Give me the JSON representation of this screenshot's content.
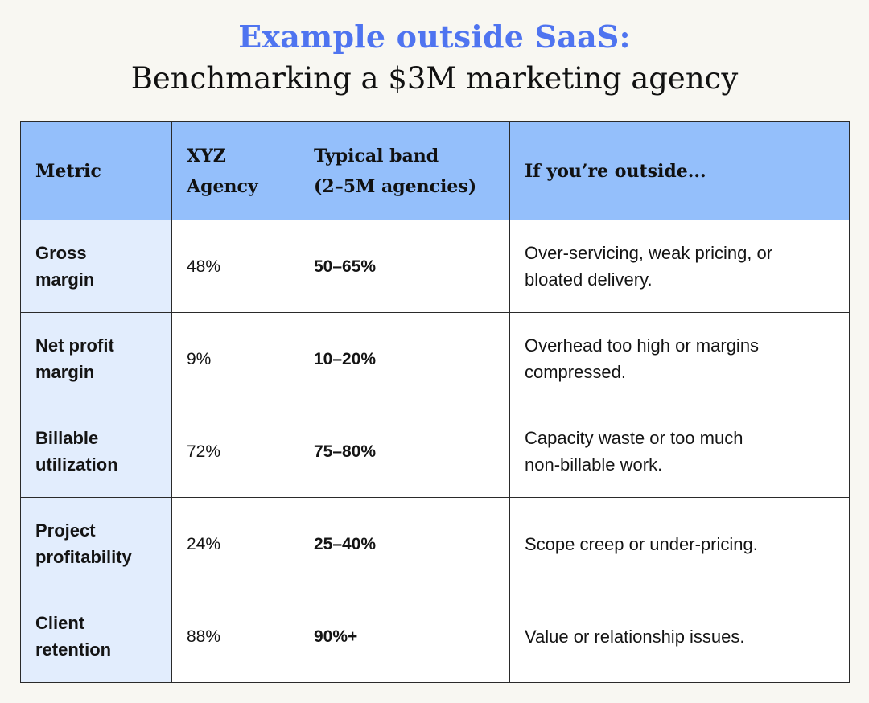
{
  "header": {
    "title_accent": "Example outside SaaS:",
    "title_main": "Benchmarking a $3M marketing agency"
  },
  "table": {
    "columns": [
      {
        "lines": [
          "Metric"
        ]
      },
      {
        "lines": [
          "XYZ",
          "Agency"
        ]
      },
      {
        "lines": [
          "Typical band",
          "(2–5M agencies)"
        ]
      },
      {
        "lines": [
          "If you’re outside..."
        ]
      }
    ],
    "rows": [
      {
        "metric": [
          "Gross",
          "margin"
        ],
        "xyz": "48%",
        "band": "50–65%",
        "note": [
          "Over-servicing, weak pricing, or",
          "bloated delivery."
        ]
      },
      {
        "metric": [
          "Net profit",
          "margin"
        ],
        "xyz": "9%",
        "band": "10–20%",
        "note": [
          "Overhead too high or margins",
          "compressed."
        ]
      },
      {
        "metric": [
          "Billable",
          "utilization"
        ],
        "xyz": "72%",
        "band": "75–80%",
        "note": [
          "Capacity waste or too much",
          "non-billable work."
        ]
      },
      {
        "metric": [
          "Project",
          "profitability"
        ],
        "xyz": "24%",
        "band": "25–40%",
        "note": [
          "Scope creep or under-pricing."
        ]
      },
      {
        "metric": [
          "Client",
          "retention"
        ],
        "xyz": "88%",
        "band": "90%+",
        "note": [
          "Value or relationship issues."
        ]
      }
    ]
  },
  "colors": {
    "accent": "#4f74f0",
    "header_bg": "#94bffb",
    "metric_bg": "#e2edfd",
    "page_bg": "#f8f7f2"
  }
}
